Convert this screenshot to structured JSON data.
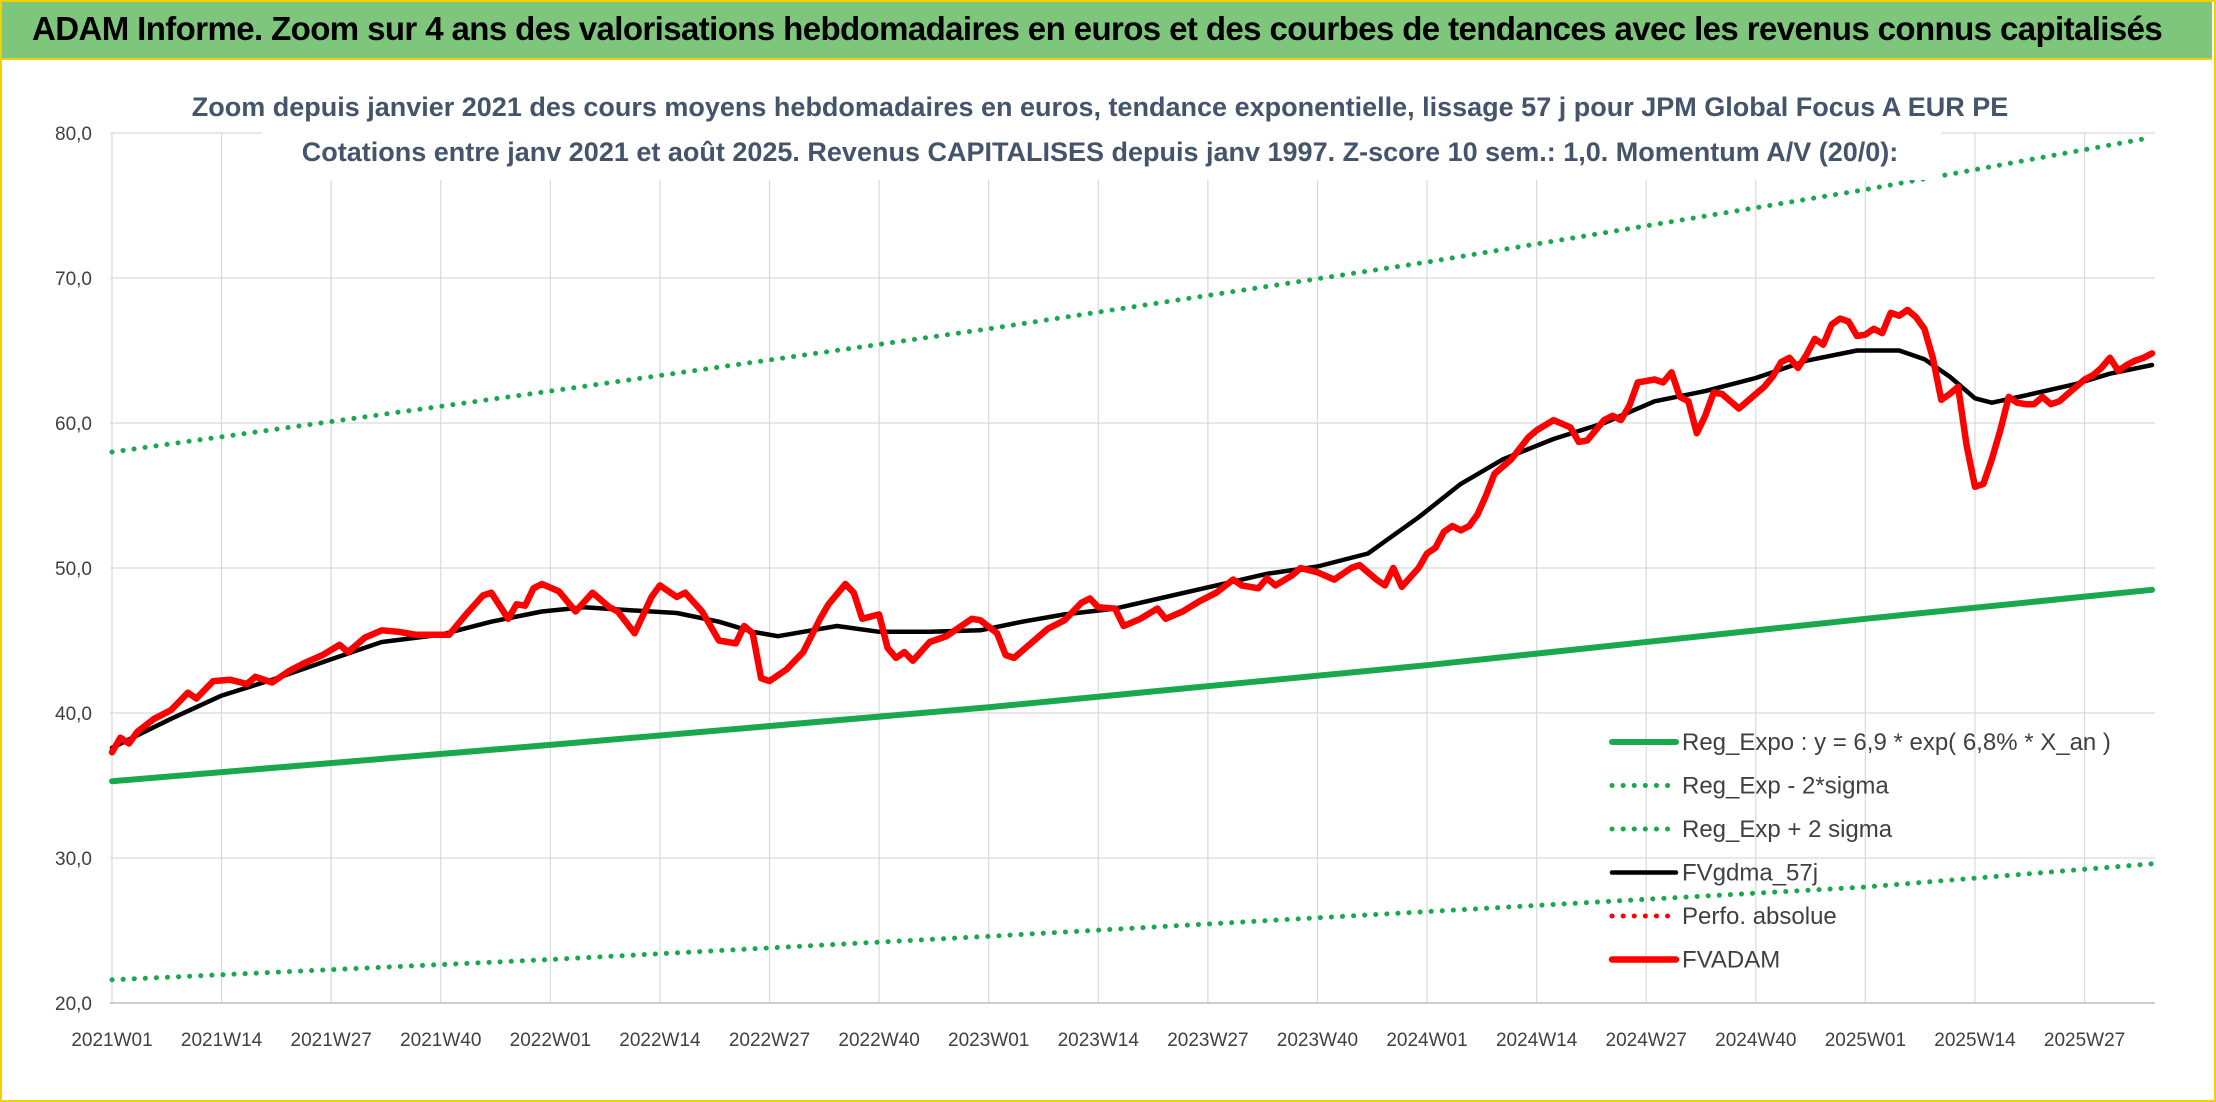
{
  "banner": {
    "title": "ADAM Informe. Zoom sur 4 ans des valorisations hebdomadaires en euros et des courbes de tendances avec les revenus connus capitalisés"
  },
  "colors": {
    "banner_bg": "#7dc67c",
    "frame_border": "#f0d000",
    "trend_green": "#1aa84f",
    "fvadam_red": "#ff0000",
    "fvgdma_black": "#000000",
    "title_text": "#44546a"
  },
  "chart_data": {
    "type": "line",
    "title": "Zoom depuis janvier 2021 des cours moyens hebdomadaires en euros, tendance exponentielle, lissage 57 j pour JPM Global Focus A EUR PE",
    "subtitle": "Cotations entre janv 2021 et août 2025. Revenus CAPITALISES depuis janv 1997. Z-score 10 sem.: 1,0. Momentum A/V (20/0):",
    "xlabel": "",
    "ylabel": "",
    "ylim": [
      20,
      80
    ],
    "y_ticks": [
      "20,0",
      "30,0",
      "40,0",
      "50,0",
      "60,0",
      "70,0",
      "80,0"
    ],
    "x_ticks": [
      "2021W01",
      "2021W14",
      "2021W27",
      "2021W40",
      "2022W01",
      "2022W14",
      "2022W27",
      "2022W40",
      "2023W01",
      "2023W14",
      "2023W27",
      "2023W40",
      "2024W01",
      "2024W14",
      "2024W27",
      "2024W40",
      "2025W01",
      "2025W14",
      "2025W27"
    ],
    "grid": true,
    "legend_position": "bottom-right",
    "series": [
      {
        "name": "Reg_Expo : y = 6,9 * exp( 6,8% *  X_an )",
        "style": "solid-thick",
        "color": "#1aa84f",
        "points": [
          [
            "2021W01",
            35.3
          ],
          [
            "2022W01",
            37.8
          ],
          [
            "2023W01",
            40.4
          ],
          [
            "2024W01",
            43.3
          ],
          [
            "2025W01",
            46.5
          ],
          [
            "2025W35",
            48.5
          ]
        ]
      },
      {
        "name": "Reg_Exp - 2*sigma",
        "style": "dotted",
        "color": "#1aa84f",
        "points": [
          [
            "2021W01",
            21.6
          ],
          [
            "2022W01",
            23.0
          ],
          [
            "2023W01",
            24.6
          ],
          [
            "2024W01",
            26.3
          ],
          [
            "2025W01",
            28.0
          ],
          [
            "2025W35",
            29.6
          ]
        ]
      },
      {
        "name": "Reg_Exp + 2 sigma",
        "style": "dotted",
        "color": "#1aa84f",
        "points": [
          [
            "2021W01",
            58.0
          ],
          [
            "2022W01",
            62.2
          ],
          [
            "2023W01",
            66.5
          ],
          [
            "2024W01",
            71.1
          ],
          [
            "2025W01",
            76.1
          ],
          [
            "2025W35",
            79.7
          ]
        ]
      },
      {
        "name": "FVgdma_57j",
        "style": "solid",
        "color": "#000000",
        "points": [
          [
            "2021W01",
            37.6
          ],
          [
            "2021W08",
            39.6
          ],
          [
            "2021W14",
            41.2
          ],
          [
            "2021W20",
            42.3
          ],
          [
            "2021W27",
            43.7
          ],
          [
            "2021W33",
            44.9
          ],
          [
            "2021W40",
            45.4
          ],
          [
            "2021W46",
            46.3
          ],
          [
            "2021W52",
            47.0
          ],
          [
            "2022W05",
            47.3
          ],
          [
            "2022W10",
            47.1
          ],
          [
            "2022W16",
            46.9
          ],
          [
            "2022W21",
            46.3
          ],
          [
            "2022W25",
            45.6
          ],
          [
            "2022W28",
            45.3
          ],
          [
            "2022W31",
            45.6
          ],
          [
            "2022W35",
            46.0
          ],
          [
            "2022W40",
            45.6
          ],
          [
            "2022W46",
            45.6
          ],
          [
            "2022W52",
            45.7
          ],
          [
            "2023W05",
            46.3
          ],
          [
            "2023W10",
            46.8
          ],
          [
            "2023W16",
            47.2
          ],
          [
            "2023W22",
            48.0
          ],
          [
            "2023W28",
            48.8
          ],
          [
            "2023W34",
            49.6
          ],
          [
            "2023W40",
            50.1
          ],
          [
            "2023W46",
            51.0
          ],
          [
            "2023W52",
            53.5
          ],
          [
            "2024W05",
            55.8
          ],
          [
            "2024W10",
            57.5
          ],
          [
            "2024W16",
            58.9
          ],
          [
            "2024W22",
            60.0
          ],
          [
            "2024W28",
            61.5
          ],
          [
            "2024W34",
            62.2
          ],
          [
            "2024W40",
            63.1
          ],
          [
            "2024W46",
            64.3
          ],
          [
            "2024W52",
            65.0
          ],
          [
            "2025W05",
            65.0
          ],
          [
            "2025W08",
            64.4
          ],
          [
            "2025W11",
            63.2
          ],
          [
            "2025W14",
            61.7
          ],
          [
            "2025W16",
            61.4
          ],
          [
            "2025W20",
            61.9
          ],
          [
            "2025W26",
            62.7
          ],
          [
            "2025W30",
            63.4
          ],
          [
            "2025W35",
            64.0
          ]
        ]
      },
      {
        "name": "Perfo. absolue",
        "style": "dotted",
        "color": "#ff0000",
        "points": []
      },
      {
        "name": "FVADAM",
        "style": "solid-thick",
        "color": "#ff0000",
        "points": [
          [
            "2021W01",
            37.3
          ],
          [
            "2021W02",
            38.3
          ],
          [
            "2021W03",
            37.9
          ],
          [
            "2021W04",
            38.7
          ],
          [
            "2021W06",
            39.6
          ],
          [
            "2021W08",
            40.2
          ],
          [
            "2021W10",
            41.4
          ],
          [
            "2021W11",
            41.0
          ],
          [
            "2021W13",
            42.2
          ],
          [
            "2021W15",
            42.3
          ],
          [
            "2021W17",
            42.0
          ],
          [
            "2021W18",
            42.5
          ],
          [
            "2021W20",
            42.1
          ],
          [
            "2021W22",
            42.9
          ],
          [
            "2021W24",
            43.5
          ],
          [
            "2021W26",
            44.0
          ],
          [
            "2021W28",
            44.7
          ],
          [
            "2021W29",
            44.2
          ],
          [
            "2021W31",
            45.2
          ],
          [
            "2021W33",
            45.7
          ],
          [
            "2021W35",
            45.6
          ],
          [
            "2021W37",
            45.4
          ],
          [
            "2021W39",
            45.4
          ],
          [
            "2021W41",
            45.4
          ],
          [
            "2021W43",
            46.8
          ],
          [
            "2021W45",
            48.1
          ],
          [
            "2021W46",
            48.3
          ],
          [
            "2021W48",
            46.5
          ],
          [
            "2021W49",
            47.5
          ],
          [
            "2021W50",
            47.4
          ],
          [
            "2021W51",
            48.6
          ],
          [
            "2021W52",
            48.9
          ],
          [
            "2022W02",
            48.4
          ],
          [
            "2022W04",
            47.0
          ],
          [
            "2022W06",
            48.3
          ],
          [
            "2022W08",
            47.3
          ],
          [
            "2022W09",
            47.0
          ],
          [
            "2022W11",
            45.5
          ],
          [
            "2022W13",
            48.0
          ],
          [
            "2022W14",
            48.8
          ],
          [
            "2022W16",
            48.0
          ],
          [
            "2022W17",
            48.3
          ],
          [
            "2022W19",
            47.0
          ],
          [
            "2022W21",
            45.0
          ],
          [
            "2022W23",
            44.8
          ],
          [
            "2022W24",
            46.0
          ],
          [
            "2022W25",
            45.5
          ],
          [
            "2022W26",
            42.4
          ],
          [
            "2022W27",
            42.2
          ],
          [
            "2022W29",
            43.0
          ],
          [
            "2022W31",
            44.2
          ],
          [
            "2022W33",
            46.5
          ],
          [
            "2022W34",
            47.5
          ],
          [
            "2022W36",
            48.9
          ],
          [
            "2022W37",
            48.3
          ],
          [
            "2022W38",
            46.5
          ],
          [
            "2022W40",
            46.8
          ],
          [
            "2022W41",
            44.5
          ],
          [
            "2022W42",
            43.8
          ],
          [
            "2022W43",
            44.2
          ],
          [
            "2022W44",
            43.6
          ],
          [
            "2022W46",
            44.9
          ],
          [
            "2022W48",
            45.3
          ],
          [
            "2022W50",
            46.1
          ],
          [
            "2022W51",
            46.5
          ],
          [
            "2022W52",
            46.4
          ],
          [
            "2023W02",
            45.5
          ],
          [
            "2023W03",
            44.0
          ],
          [
            "2023W04",
            43.8
          ],
          [
            "2023W06",
            44.8
          ],
          [
            "2023W08",
            45.8
          ],
          [
            "2023W10",
            46.4
          ],
          [
            "2023W12",
            47.6
          ],
          [
            "2023W13",
            47.9
          ],
          [
            "2023W14",
            47.3
          ],
          [
            "2023W16",
            47.2
          ],
          [
            "2023W17",
            46.0
          ],
          [
            "2023W19",
            46.5
          ],
          [
            "2023W21",
            47.2
          ],
          [
            "2023W22",
            46.5
          ],
          [
            "2023W24",
            47.0
          ],
          [
            "2023W26",
            47.7
          ],
          [
            "2023W28",
            48.3
          ],
          [
            "2023W30",
            49.2
          ],
          [
            "2023W31",
            48.8
          ],
          [
            "2023W33",
            48.6
          ],
          [
            "2023W34",
            49.3
          ],
          [
            "2023W35",
            48.8
          ],
          [
            "2023W37",
            49.5
          ],
          [
            "2023W38",
            50.0
          ],
          [
            "2023W40",
            49.7
          ],
          [
            "2023W42",
            49.2
          ],
          [
            "2023W44",
            50.0
          ],
          [
            "2023W45",
            50.2
          ],
          [
            "2023W47",
            49.2
          ],
          [
            "2023W48",
            48.8
          ],
          [
            "2023W49",
            50.0
          ],
          [
            "2023W50",
            48.7
          ],
          [
            "2023W52",
            50.0
          ],
          [
            "2024W01",
            51.0
          ],
          [
            "2024W02",
            51.4
          ],
          [
            "2024W03",
            52.5
          ],
          [
            "2024W04",
            52.9
          ],
          [
            "2024W05",
            52.6
          ],
          [
            "2024W06",
            52.9
          ],
          [
            "2024W07",
            53.7
          ],
          [
            "2024W08",
            55.0
          ],
          [
            "2024W09",
            56.5
          ],
          [
            "2024W10",
            57.0
          ],
          [
            "2024W11",
            57.5
          ],
          [
            "2024W13",
            59.0
          ],
          [
            "2024W14",
            59.5
          ],
          [
            "2024W16",
            60.2
          ],
          [
            "2024W18",
            59.7
          ],
          [
            "2024W19",
            58.7
          ],
          [
            "2024W20",
            58.8
          ],
          [
            "2024W22",
            60.2
          ],
          [
            "2024W23",
            60.5
          ],
          [
            "2024W24",
            60.2
          ],
          [
            "2024W25",
            61.2
          ],
          [
            "2024W26",
            62.8
          ],
          [
            "2024W28",
            63.0
          ],
          [
            "2024W29",
            62.8
          ],
          [
            "2024W30",
            63.5
          ],
          [
            "2024W31",
            61.8
          ],
          [
            "2024W32",
            61.5
          ],
          [
            "2024W33",
            59.3
          ],
          [
            "2024W34",
            60.5
          ],
          [
            "2024W35",
            62.1
          ],
          [
            "2024W36",
            62.0
          ],
          [
            "2024W37",
            61.5
          ],
          [
            "2024W38",
            61.0
          ],
          [
            "2024W40",
            62.0
          ],
          [
            "2024W41",
            62.5
          ],
          [
            "2024W42",
            63.2
          ],
          [
            "2024W43",
            64.2
          ],
          [
            "2024W44",
            64.5
          ],
          [
            "2024W45",
            63.8
          ],
          [
            "2024W46",
            64.7
          ],
          [
            "2024W47",
            65.8
          ],
          [
            "2024W48",
            65.4
          ],
          [
            "2024W49",
            66.8
          ],
          [
            "2024W50",
            67.2
          ],
          [
            "2024W51",
            67.0
          ],
          [
            "2024W52",
            66.0
          ],
          [
            "2025W01",
            66.1
          ],
          [
            "2025W02",
            66.5
          ],
          [
            "2025W03",
            66.2
          ],
          [
            "2025W04",
            67.6
          ],
          [
            "2025W05",
            67.4
          ],
          [
            "2025W06",
            67.8
          ],
          [
            "2025W07",
            67.3
          ],
          [
            "2025W08",
            66.5
          ],
          [
            "2025W09",
            64.5
          ],
          [
            "2025W10",
            61.6
          ],
          [
            "2025W11",
            62.0
          ],
          [
            "2025W12",
            62.5
          ],
          [
            "2025W13",
            58.5
          ],
          [
            "2025W14",
            55.6
          ],
          [
            "2025W15",
            55.8
          ],
          [
            "2025W16",
            57.5
          ],
          [
            "2025W17",
            59.5
          ],
          [
            "2025W18",
            61.8
          ],
          [
            "2025W19",
            61.4
          ],
          [
            "2025W20",
            61.3
          ],
          [
            "2025W21",
            61.3
          ],
          [
            "2025W22",
            61.8
          ],
          [
            "2025W23",
            61.3
          ],
          [
            "2025W24",
            61.5
          ],
          [
            "2025W25",
            62.0
          ],
          [
            "2025W26",
            62.5
          ],
          [
            "2025W27",
            63.0
          ],
          [
            "2025W28",
            63.3
          ],
          [
            "2025W29",
            63.8
          ],
          [
            "2025W30",
            64.5
          ],
          [
            "2025W31",
            63.6
          ],
          [
            "2025W32",
            64.0
          ],
          [
            "2025W33",
            64.3
          ],
          [
            "2025W34",
            64.5
          ],
          [
            "2025W35",
            64.8
          ]
        ]
      }
    ]
  }
}
